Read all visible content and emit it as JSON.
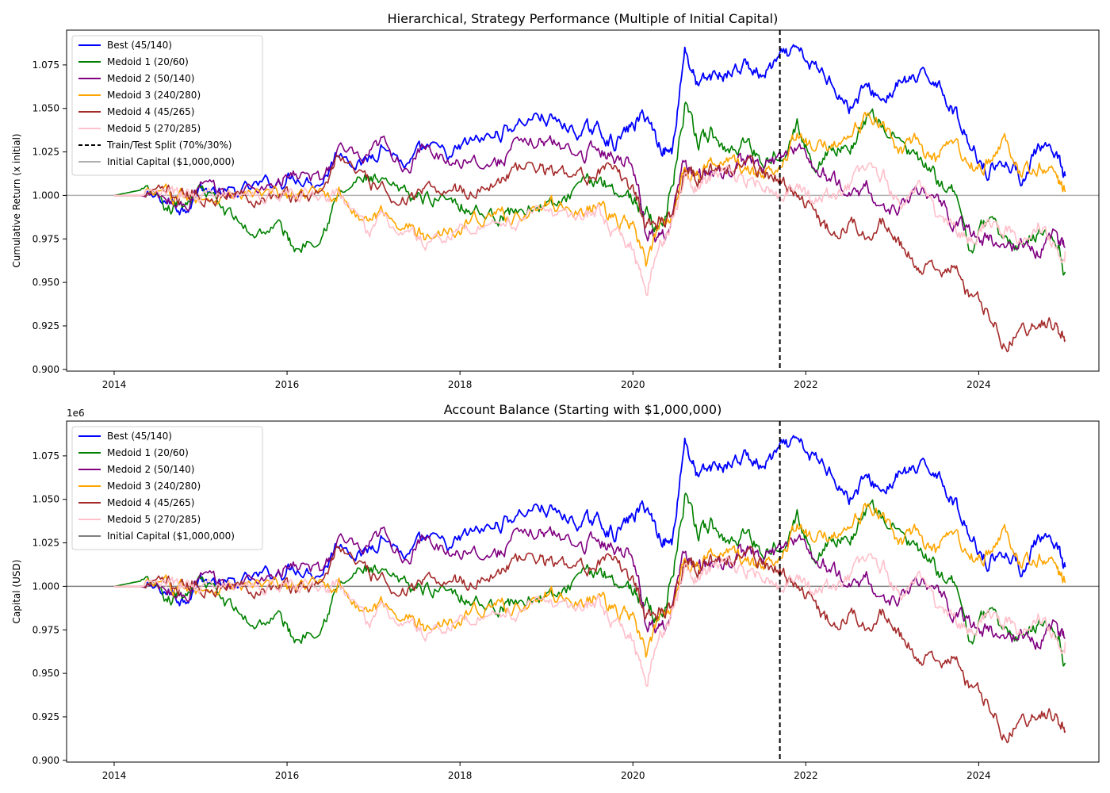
{
  "chart_data": [
    {
      "type": "line",
      "title": "Hierarchical, Strategy Performance (Multiple of Initial Capital)",
      "xlabel": "",
      "ylabel": "Cumulative Return (x initial)",
      "y_multiplier": "",
      "xlim": [
        2013.45,
        2025.39
      ],
      "ylim": [
        0.899,
        1.095
      ],
      "x_ticks": [
        2014,
        2016,
        2018,
        2020,
        2022,
        2024
      ],
      "y_ticks": [
        0.9,
        0.925,
        0.95,
        0.975,
        1.0,
        1.025,
        1.05,
        1.075
      ],
      "y_tick_labels": [
        "0.900",
        "0.925",
        "0.950",
        "0.975",
        "1.000",
        "1.025",
        "1.050",
        "1.075"
      ],
      "grid": false,
      "legend_position": "upper-left",
      "split_line": {
        "x": 2021.7,
        "name": "Train/Test Split (70%/30%)",
        "color": "#000000"
      },
      "baseline": {
        "y": 1.0,
        "name": "Initial Capital ($1,000,000)",
        "color": "#b0b0b0"
      },
      "series": [
        {
          "name": "Best (45/140)",
          "color": "#0000ff",
          "x": [
            2014.0,
            2014.3,
            2014.6,
            2014.8,
            2015.0,
            2015.3,
            2015.6,
            2015.9,
            2016.1,
            2016.4,
            2016.6,
            2016.9,
            2017.1,
            2017.4,
            2017.6,
            2017.9,
            2018.1,
            2018.4,
            2018.6,
            2018.9,
            2019.1,
            2019.4,
            2019.6,
            2019.8,
            2020.0,
            2020.15,
            2020.3,
            2020.45,
            2020.6,
            2020.75,
            2020.9,
            2021.1,
            2021.3,
            2021.5,
            2021.7,
            2021.9,
            2022.1,
            2022.3,
            2022.5,
            2022.7,
            2022.9,
            2023.1,
            2023.3,
            2023.5,
            2023.7,
            2023.9,
            2024.1,
            2024.3,
            2024.5,
            2024.7,
            2024.9,
            2025.0
          ],
          "y": [
            1.0,
            1.0,
            0.997,
            0.993,
            1.005,
            1.0,
            1.004,
            1.008,
            1.012,
            1.008,
            1.026,
            1.018,
            1.03,
            1.016,
            1.027,
            1.022,
            1.03,
            1.034,
            1.04,
            1.046,
            1.042,
            1.036,
            1.038,
            1.03,
            1.04,
            1.047,
            1.03,
            1.024,
            1.085,
            1.062,
            1.068,
            1.07,
            1.075,
            1.068,
            1.078,
            1.082,
            1.073,
            1.067,
            1.05,
            1.062,
            1.055,
            1.065,
            1.066,
            1.068,
            1.05,
            1.03,
            1.015,
            1.02,
            1.01,
            1.028,
            1.02,
            1.011
          ]
        },
        {
          "name": "Medoid 1 (20/60)",
          "color": "#008000",
          "x": [
            2014.0,
            2014.3,
            2014.6,
            2014.8,
            2015.0,
            2015.3,
            2015.6,
            2015.9,
            2016.1,
            2016.4,
            2016.6,
            2016.9,
            2017.1,
            2017.4,
            2017.6,
            2017.9,
            2018.1,
            2018.4,
            2018.6,
            2018.9,
            2019.1,
            2019.4,
            2019.6,
            2019.8,
            2020.0,
            2020.15,
            2020.3,
            2020.45,
            2020.6,
            2020.75,
            2020.9,
            2021.1,
            2021.3,
            2021.5,
            2021.7,
            2021.9,
            2022.1,
            2022.3,
            2022.5,
            2022.7,
            2022.9,
            2023.1,
            2023.3,
            2023.5,
            2023.7,
            2023.9,
            2024.1,
            2024.3,
            2024.5,
            2024.7,
            2024.9,
            2025.0
          ],
          "y": [
            1.0,
            1.003,
            0.99,
            0.995,
            1.005,
            0.99,
            0.978,
            0.983,
            0.969,
            0.98,
            1.0,
            1.01,
            1.005,
            1.0,
            0.998,
            1.0,
            0.993,
            0.988,
            0.99,
            0.995,
            0.993,
            1.004,
            1.01,
            1.004,
            0.998,
            0.99,
            0.98,
            1.003,
            1.05,
            1.03,
            1.035,
            1.025,
            1.032,
            1.02,
            1.025,
            1.04,
            1.015,
            1.03,
            1.025,
            1.045,
            1.04,
            1.03,
            1.02,
            1.01,
            1.003,
            0.97,
            0.985,
            0.975,
            0.97,
            0.98,
            0.975,
            0.956
          ]
        },
        {
          "name": "Medoid 2 (50/140)",
          "color": "#800080",
          "x": [
            2014.0,
            2014.3,
            2014.6,
            2014.8,
            2015.0,
            2015.3,
            2015.6,
            2015.9,
            2016.1,
            2016.4,
            2016.6,
            2016.9,
            2017.1,
            2017.4,
            2017.6,
            2017.9,
            2018.1,
            2018.4,
            2018.6,
            2018.9,
            2019.1,
            2019.4,
            2019.6,
            2019.8,
            2020.0,
            2020.15,
            2020.3,
            2020.45,
            2020.6,
            2020.75,
            2020.9,
            2021.1,
            2021.3,
            2021.5,
            2021.7,
            2021.9,
            2022.1,
            2022.3,
            2022.5,
            2022.7,
            2022.9,
            2023.1,
            2023.3,
            2023.5,
            2023.7,
            2023.9,
            2024.1,
            2024.3,
            2024.5,
            2024.7,
            2024.9,
            2025.0
          ],
          "y": [
            1.0,
            1.0,
            0.997,
            0.993,
            1.005,
            1.0,
            1.004,
            1.008,
            1.012,
            1.008,
            1.026,
            1.018,
            1.03,
            1.016,
            1.027,
            1.02,
            1.022,
            1.018,
            1.026,
            1.032,
            1.03,
            1.024,
            1.027,
            1.022,
            1.02,
            0.98,
            0.975,
            0.985,
            1.02,
            1.01,
            1.012,
            1.015,
            1.02,
            1.018,
            1.02,
            1.03,
            1.015,
            1.01,
            1.0,
            1.005,
            0.99,
            0.995,
            1.0,
            1.0,
            0.985,
            0.98,
            0.975,
            0.97,
            0.972,
            0.968,
            0.98,
            0.97
          ]
        },
        {
          "name": "Medoid 3 (240/280)",
          "color": "#ffa500",
          "x": [
            2014.0,
            2014.3,
            2014.6,
            2014.8,
            2015.0,
            2015.3,
            2015.6,
            2015.9,
            2016.1,
            2016.4,
            2016.6,
            2016.9,
            2017.1,
            2017.4,
            2017.6,
            2017.9,
            2018.1,
            2018.4,
            2018.6,
            2018.9,
            2019.1,
            2019.4,
            2019.6,
            2019.8,
            2020.0,
            2020.15,
            2020.3,
            2020.45,
            2020.6,
            2020.75,
            2020.9,
            2021.1,
            2021.3,
            2021.5,
            2021.7,
            2021.9,
            2022.1,
            2022.3,
            2022.5,
            2022.7,
            2022.9,
            2023.1,
            2023.3,
            2023.5,
            2023.7,
            2023.9,
            2024.1,
            2024.3,
            2024.5,
            2024.7,
            2024.9,
            2025.0
          ],
          "y": [
            1.0,
            1.0,
            1.0,
            1.0,
            1.0,
            1.0,
            1.0,
            1.0,
            1.0,
            1.0,
            1.002,
            0.985,
            0.99,
            0.983,
            0.975,
            0.982,
            0.985,
            0.99,
            0.988,
            0.992,
            0.995,
            0.99,
            0.995,
            0.985,
            0.982,
            0.96,
            0.98,
            0.99,
            1.015,
            1.012,
            1.018,
            1.02,
            1.015,
            1.01,
            1.02,
            1.035,
            1.025,
            1.03,
            1.035,
            1.045,
            1.04,
            1.025,
            1.03,
            1.02,
            1.03,
            1.015,
            1.02,
            1.03,
            1.01,
            1.018,
            1.01,
            1.002
          ]
        },
        {
          "name": "Medoid 4 (45/265)",
          "color": "#a52a2a",
          "x": [
            2014.0,
            2014.3,
            2014.6,
            2014.8,
            2015.0,
            2015.3,
            2015.6,
            2015.9,
            2016.1,
            2016.4,
            2016.6,
            2016.9,
            2017.1,
            2017.4,
            2017.6,
            2017.9,
            2018.1,
            2018.4,
            2018.6,
            2018.9,
            2019.1,
            2019.4,
            2019.6,
            2019.8,
            2020.0,
            2020.15,
            2020.3,
            2020.45,
            2020.6,
            2020.75,
            2020.9,
            2021.1,
            2021.3,
            2021.5,
            2021.7,
            2021.9,
            2022.1,
            2022.3,
            2022.5,
            2022.7,
            2022.9,
            2023.1,
            2023.3,
            2023.5,
            2023.7,
            2023.9,
            2024.1,
            2024.3,
            2024.5,
            2024.7,
            2024.9,
            2025.0
          ],
          "y": [
            1.0,
            1.0,
            1.0,
            1.0,
            1.0,
            1.0,
            1.0,
            1.0,
            1.0,
            1.0,
            1.025,
            1.008,
            1.002,
            0.998,
            1.0,
            1.005,
            1.002,
            1.008,
            1.014,
            1.016,
            1.013,
            1.01,
            1.015,
            1.012,
            1.005,
            0.985,
            0.985,
            0.99,
            1.015,
            1.01,
            1.015,
            1.015,
            1.018,
            1.013,
            1.01,
            1.0,
            0.99,
            0.978,
            0.985,
            0.98,
            0.985,
            0.97,
            0.96,
            0.955,
            0.96,
            0.94,
            0.935,
            0.915,
            0.92,
            0.93,
            0.925,
            0.917
          ]
        },
        {
          "name": "Medoid 5 (270/285)",
          "color": "#ffc0cb",
          "x": [
            2014.0,
            2014.3,
            2014.6,
            2014.8,
            2015.0,
            2015.3,
            2015.6,
            2015.9,
            2016.1,
            2016.4,
            2016.6,
            2016.9,
            2017.1,
            2017.4,
            2017.6,
            2017.9,
            2018.1,
            2018.4,
            2018.6,
            2018.9,
            2019.1,
            2019.4,
            2019.6,
            2019.8,
            2020.0,
            2020.15,
            2020.3,
            2020.45,
            2020.6,
            2020.75,
            2020.9,
            2021.1,
            2021.3,
            2021.5,
            2021.7,
            2021.9,
            2022.1,
            2022.3,
            2022.5,
            2022.7,
            2022.9,
            2023.1,
            2023.3,
            2023.5,
            2023.7,
            2023.9,
            2024.1,
            2024.3,
            2024.5,
            2024.7,
            2024.9,
            2025.0
          ],
          "y": [
            1.0,
            1.0,
            1.0,
            1.0,
            1.0,
            1.0,
            1.0,
            1.0,
            1.0,
            1.0,
            1.0,
            0.98,
            0.985,
            0.978,
            0.972,
            0.978,
            0.982,
            0.985,
            0.984,
            0.99,
            0.99,
            0.988,
            0.99,
            0.975,
            0.97,
            0.945,
            0.97,
            0.985,
            1.01,
            1.005,
            1.01,
            1.012,
            1.01,
            1.008,
            1.0,
            1.005,
            0.995,
            1.0,
            1.005,
            1.015,
            1.01,
            0.995,
            1.005,
            0.99,
            0.985,
            0.975,
            0.985,
            0.98,
            0.975,
            0.985,
            0.97,
            0.968
          ]
        }
      ]
    },
    {
      "type": "line",
      "title": "Account Balance (Starting with $1,000,000)",
      "xlabel": "",
      "ylabel": "Capital (USD)",
      "y_multiplier": "1e6",
      "xlim": [
        2013.45,
        2025.39
      ],
      "ylim": [
        0.899,
        1.095
      ],
      "x_ticks": [
        2014,
        2016,
        2018,
        2020,
        2022,
        2024
      ],
      "y_ticks": [
        0.9,
        0.925,
        0.95,
        0.975,
        1.0,
        1.025,
        1.05,
        1.075
      ],
      "y_tick_labels": [
        "0.900",
        "0.925",
        "0.950",
        "0.975",
        "1.000",
        "1.025",
        "1.050",
        "1.075"
      ],
      "grid": false,
      "legend_position": "upper-left",
      "split_line": {
        "x": 2021.7,
        "name": "",
        "color": "#000000"
      },
      "baseline": {
        "y": 1.0,
        "name": "Initial Capital ($1,000,000)",
        "color": "#808080"
      },
      "series_ref": "same as chart 1 (values scaled by 1e6)",
      "legend": [
        {
          "name": "Best (45/140)",
          "color": "#0000ff"
        },
        {
          "name": "Medoid 1 (20/60)",
          "color": "#008000"
        },
        {
          "name": "Medoid 2 (50/140)",
          "color": "#800080"
        },
        {
          "name": "Medoid 3 (240/280)",
          "color": "#ffa500"
        },
        {
          "name": "Medoid 4 (45/265)",
          "color": "#a52a2a"
        },
        {
          "name": "Medoid 5 (270/285)",
          "color": "#ffc0cb"
        },
        {
          "name": "Initial Capital ($1,000,000)",
          "color": "#808080"
        }
      ]
    }
  ]
}
